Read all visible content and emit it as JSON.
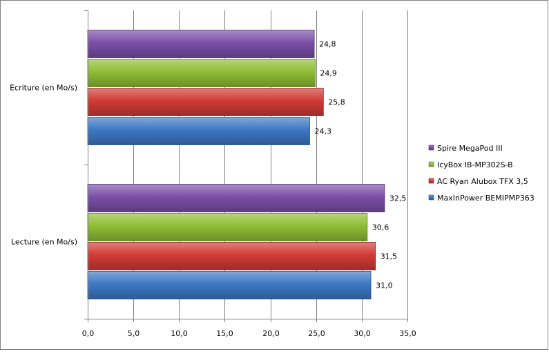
{
  "chart_data": {
    "type": "bar",
    "orientation": "horizontal",
    "categories": [
      "Ecriture (en Mo/s)",
      "Lecture (en Mo/s)"
    ],
    "series": [
      {
        "name": "Spire MegaPod III",
        "color": "#7b4fa8",
        "values": [
          24.8,
          32.5
        ],
        "labels": [
          "24,8",
          "32,5"
        ]
      },
      {
        "name": "IcyBox IB-MP302S-B",
        "color": "#8fbf35",
        "values": [
          24.9,
          30.6
        ],
        "labels": [
          "24,9",
          "30,6"
        ]
      },
      {
        "name": "AC Ryan Alubox TFX 3,5",
        "color": "#d13b36",
        "values": [
          25.8,
          31.5
        ],
        "labels": [
          "25,8",
          "31,5"
        ]
      },
      {
        "name": "MaxInPower BEMIPMP363",
        "color": "#3d79c4",
        "values": [
          24.3,
          31.0
        ],
        "labels": [
          "24,3",
          "31,0"
        ]
      }
    ],
    "xlim": [
      0,
      35
    ],
    "xticks": [
      0,
      5,
      10,
      15,
      20,
      25,
      30,
      35
    ],
    "xtick_labels": [
      "0,0",
      "5,0",
      "10,0",
      "15,0",
      "20,0",
      "25,0",
      "30,0",
      "35,0"
    ],
    "grid": true,
    "legend_position": "right",
    "legend_order": [
      "Spire MegaPod III",
      "IcyBox IB-MP302S-B",
      "AC Ryan Alubox TFX 3,5",
      "MaxInPower BEMIPMP363"
    ]
  }
}
